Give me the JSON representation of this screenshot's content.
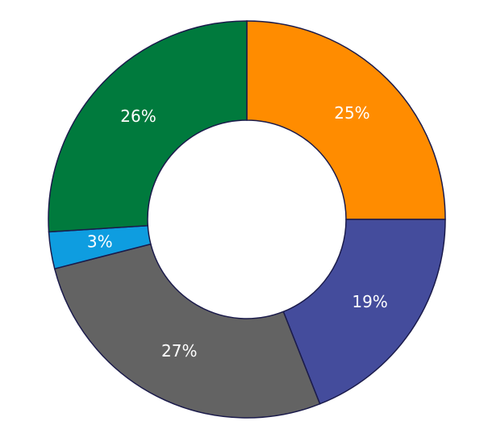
{
  "chart_data": {
    "type": "donut",
    "values": [
      25,
      19,
      27,
      3,
      26
    ],
    "value_labels": [
      "25%",
      "19%",
      "27%",
      "3%",
      "26%"
    ],
    "colors": [
      "#ff8c00",
      "#444c9c",
      "#636363",
      "#0e9de0",
      "#007a3d"
    ]
  }
}
